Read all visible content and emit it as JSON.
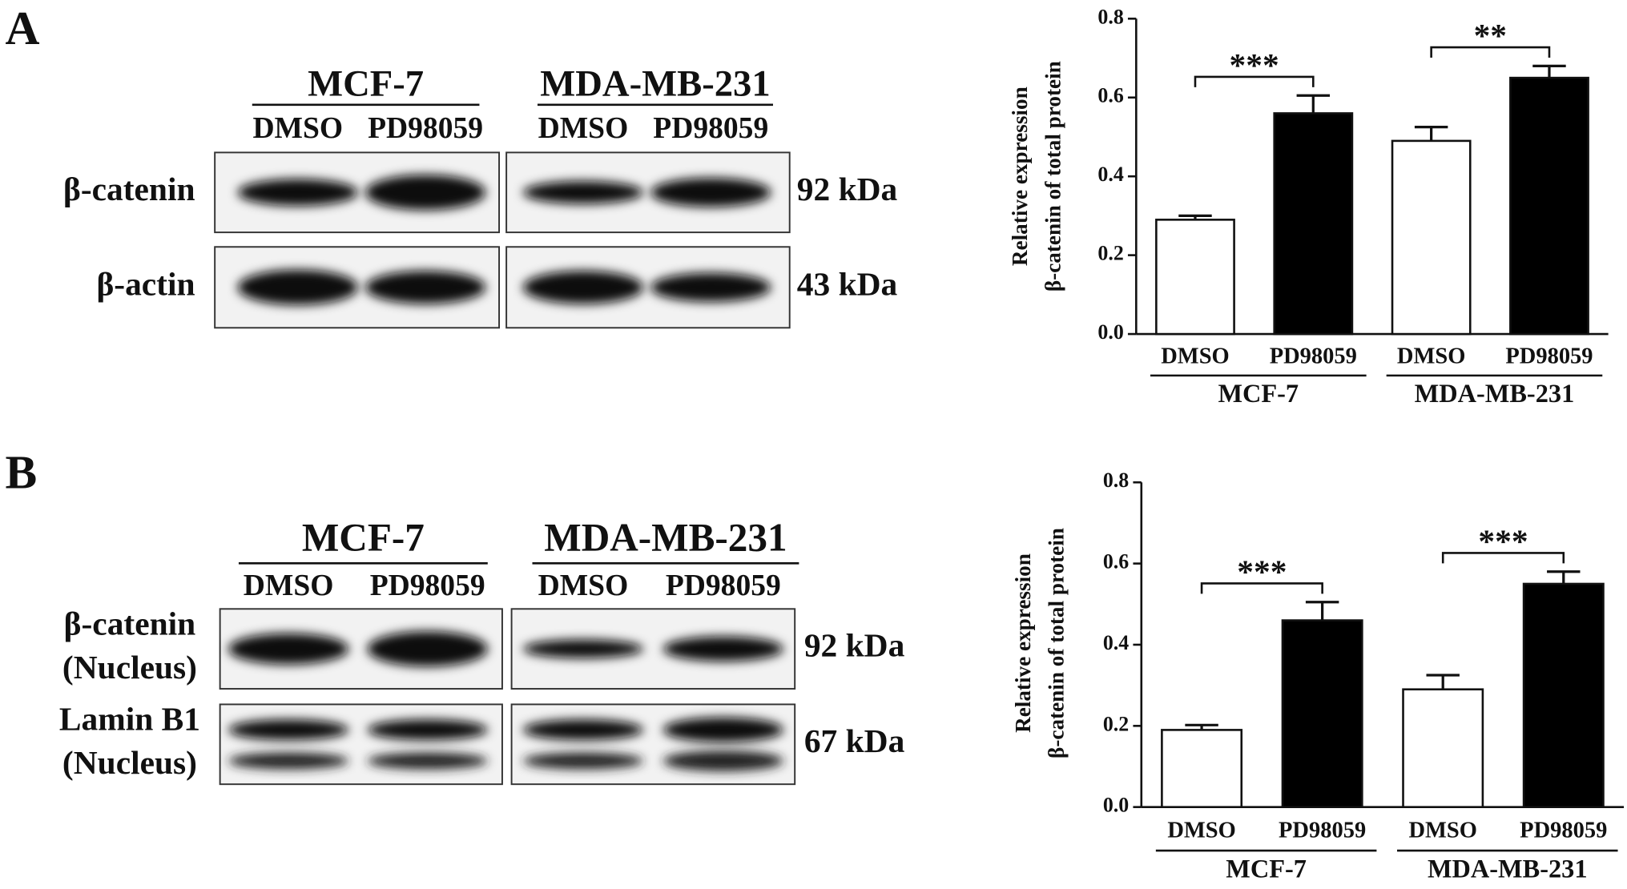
{
  "panel_labels": [
    "A",
    "B"
  ],
  "blots": [
    {
      "groups": [
        "MCF-7",
        "MDA-MB-231"
      ],
      "lanes": [
        "DMSO",
        "PD98059",
        "DMSO",
        "PD98059"
      ],
      "rows": [
        {
          "label": [
            "β-catenin"
          ],
          "size": "92 kDa"
        },
        {
          "label": [
            "β-actin"
          ],
          "size": "43 kDa"
        }
      ]
    },
    {
      "groups": [
        "MCF-7",
        "MDA-MB-231"
      ],
      "lanes": [
        "DMSO",
        "PD98059",
        "DMSO",
        "PD98059"
      ],
      "rows": [
        {
          "label": [
            "β-catenin",
            "(Nucleus)"
          ],
          "size": "92 kDa"
        },
        {
          "label": [
            "Lamin B1",
            "(Nucleus)"
          ],
          "size": "67 kDa"
        }
      ]
    }
  ],
  "chart_data": [
    {
      "type": "bar",
      "ylabel": [
        "Relative  expression",
        "β-catenin of total protein"
      ],
      "categories": [
        "DMSO",
        "PD98059",
        "DMSO",
        "PD98059"
      ],
      "groups": [
        "MCF-7",
        "MDA-MB-231"
      ],
      "values": [
        0.29,
        0.56,
        0.49,
        0.65
      ],
      "errors": [
        0.01,
        0.045,
        0.035,
        0.03
      ],
      "colors": [
        "#ffffff",
        "#000000",
        "#ffffff",
        "#000000"
      ],
      "annotations": [
        "***",
        "**"
      ],
      "ylim": [
        0,
        0.8
      ],
      "yticks": [
        {
          "value": 0,
          "label": "0.0"
        },
        {
          "value": 0.2,
          "label": "0.2"
        },
        {
          "value": 0.4,
          "label": "0.4"
        },
        {
          "value": 0.6,
          "label": "0.6"
        },
        {
          "value": 0.8,
          "label": "0.8"
        }
      ]
    },
    {
      "type": "bar",
      "ylabel": [
        "Relative  expression",
        "β-catenin of total protein"
      ],
      "categories": [
        "DMSO",
        "PD98059",
        "DMSO",
        "PD98059"
      ],
      "groups": [
        "MCF-7",
        "MDA-MB-231"
      ],
      "values": [
        0.19,
        0.46,
        0.29,
        0.55
      ],
      "errors": [
        0.012,
        0.045,
        0.035,
        0.03
      ],
      "colors": [
        "#ffffff",
        "#000000",
        "#ffffff",
        "#000000"
      ],
      "annotations": [
        "***",
        "***"
      ],
      "ylim": [
        0,
        0.8
      ],
      "yticks": [
        {
          "value": 0,
          "label": "0.0"
        },
        {
          "value": 0.2,
          "label": "0.2"
        },
        {
          "value": 0.4,
          "label": "0.4"
        },
        {
          "value": 0.6,
          "label": "0.6"
        },
        {
          "value": 0.8,
          "label": "0.8"
        }
      ]
    }
  ]
}
